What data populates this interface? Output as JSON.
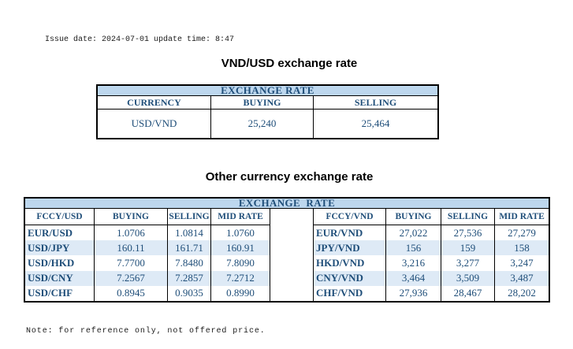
{
  "page": {
    "issue_line": "Issue date: 2024-07-01 update time: 8:47",
    "note": "Note: for reference only, not offered price."
  },
  "colors": {
    "header_band_bg": "#BDD7EE",
    "row_stripe_bg": "#DEEAF6",
    "table_text": "#1F4E79",
    "border": "#000000"
  },
  "usd_table": {
    "title": "VND/USD exchange rate",
    "band": "EXCHANGE RATE",
    "columns": [
      "CURRENCY",
      "BUYING",
      "SELLING"
    ],
    "row": {
      "currency": "USD/VND",
      "buying": "25,240",
      "selling": "25,464"
    }
  },
  "other_table": {
    "title": "Other currency exchange rate",
    "band": "EXCHANGE  RATE",
    "left": {
      "columns": [
        "FCCY/USD",
        "BUYING",
        "SELLING",
        "MID RATE"
      ],
      "rows": [
        {
          "pair": "EUR/USD",
          "buying": "1.0706",
          "selling": "1.0814",
          "mid": "1.0760"
        },
        {
          "pair": "USD/JPY",
          "buying": "160.11",
          "selling": "161.71",
          "mid": "160.91"
        },
        {
          "pair": "USD/HKD",
          "buying": "7.7700",
          "selling": "7.8480",
          "mid": "7.8090"
        },
        {
          "pair": "USD/CNY",
          "buying": "7.2567",
          "selling": "7.2857",
          "mid": "7.2712"
        },
        {
          "pair": "USD/CHF",
          "buying": "0.8945",
          "selling": "0.9035",
          "mid": "0.8990"
        }
      ]
    },
    "right": {
      "columns": [
        "FCCY/VND",
        "BUYING",
        "SELLING",
        "MID RATE"
      ],
      "rows": [
        {
          "pair": "EUR/VND",
          "buying": "27,022",
          "selling": "27,536",
          "mid": "27,279"
        },
        {
          "pair": "JPY/VND",
          "buying": "156",
          "selling": "159",
          "mid": "158"
        },
        {
          "pair": "HKD/VND",
          "buying": "3,216",
          "selling": "3,277",
          "mid": "3,247"
        },
        {
          "pair": "CNY/VND",
          "buying": "3,464",
          "selling": "3,509",
          "mid": "3,487"
        },
        {
          "pair": "CHF/VND",
          "buying": "27,936",
          "selling": "28,467",
          "mid": "28,202"
        }
      ]
    }
  }
}
